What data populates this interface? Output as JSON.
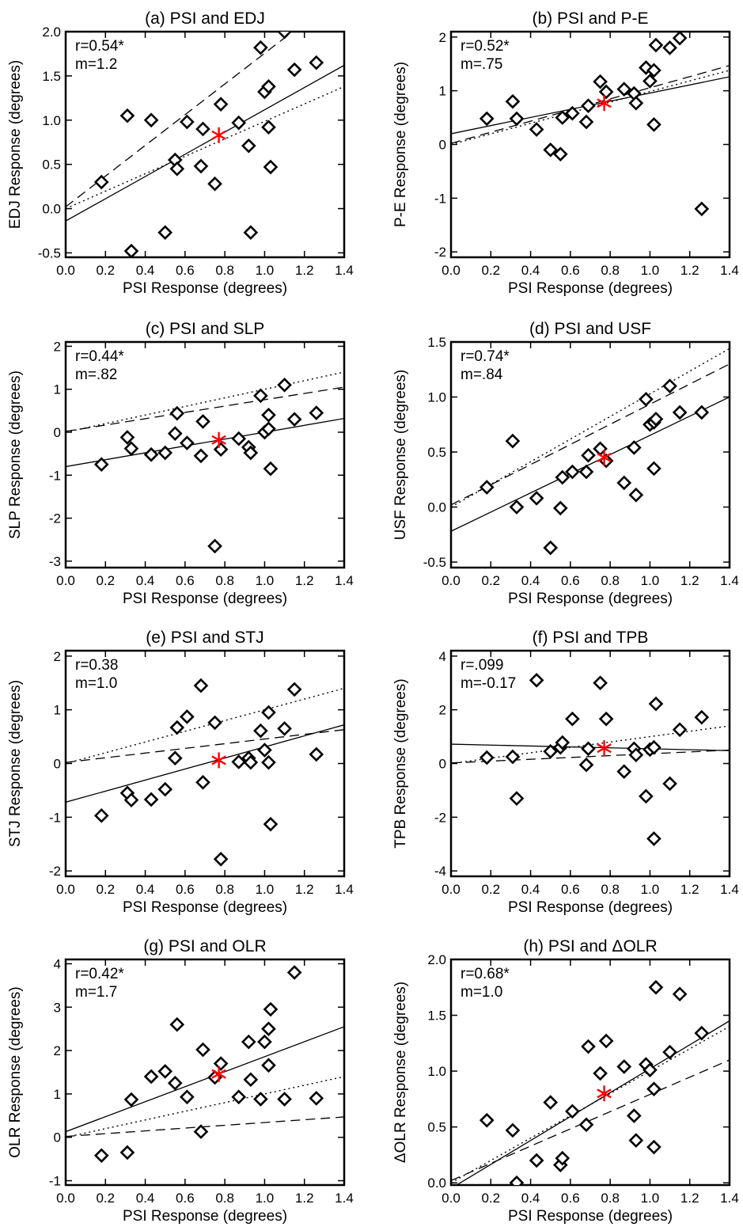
{
  "chart_data": [
    {
      "type": "scatter",
      "title": "(a) PSI and EDJ",
      "xlabel": "PSI Response (degrees)",
      "ylabel": "EDJ Response (degrees)",
      "xlim": [
        0,
        1.4
      ],
      "ylim": [
        -0.55,
        2.0
      ],
      "xticks": [
        "0.0",
        "0.2",
        "0.4",
        "0.6",
        "0.8",
        "1.0",
        "1.2",
        "1.4"
      ],
      "yticks": [
        "-0.5",
        "0.0",
        "0.5",
        "1.0",
        "1.5",
        "2.0"
      ],
      "stats": [
        "r=0.54*",
        "m=1.2"
      ],
      "points": [
        [
          0.18,
          0.3
        ],
        [
          0.31,
          1.05
        ],
        [
          0.33,
          -0.48
        ],
        [
          0.43,
          1.0
        ],
        [
          0.5,
          -0.27
        ],
        [
          0.55,
          0.55
        ],
        [
          0.56,
          0.45
        ],
        [
          0.61,
          0.98
        ],
        [
          0.68,
          0.48
        ],
        [
          0.69,
          0.9
        ],
        [
          0.75,
          0.28
        ],
        [
          0.78,
          1.18
        ],
        [
          0.87,
          0.97
        ],
        [
          0.92,
          0.71
        ],
        [
          0.93,
          -0.27
        ],
        [
          0.98,
          1.82
        ],
        [
          1.0,
          1.32
        ],
        [
          1.02,
          1.38
        ],
        [
          1.02,
          0.92
        ],
        [
          1.03,
          0.47
        ],
        [
          1.1,
          2.0
        ],
        [
          1.15,
          1.57
        ],
        [
          1.26,
          1.65
        ]
      ],
      "mean_point": [
        0.77,
        0.83
      ],
      "lines": {
        "solid": [
          [
            0,
            -0.14
          ],
          [
            1.4,
            1.62
          ]
        ],
        "dashed": [
          [
            0,
            0.02
          ],
          [
            1.4,
            2.45
          ]
        ],
        "dotted": [
          [
            0,
            0.0
          ],
          [
            1.4,
            1.38
          ]
        ]
      }
    },
    {
      "type": "scatter",
      "title": "(b) PSI and P-E",
      "xlabel": "PSI Response (degrees)",
      "ylabel": "P-E Response (degrees)",
      "xlim": [
        0,
        1.4
      ],
      "ylim": [
        -2.1,
        2.1
      ],
      "xticks": [
        "0.0",
        "0.2",
        "0.4",
        "0.6",
        "0.8",
        "1.0",
        "1.2",
        "1.4"
      ],
      "yticks": [
        "-2",
        "-1",
        "0",
        "1",
        "2"
      ],
      "stats": [
        "r=0.52*",
        "m=.75"
      ],
      "points": [
        [
          0.18,
          0.48
        ],
        [
          0.31,
          0.8
        ],
        [
          0.33,
          0.48
        ],
        [
          0.43,
          0.28
        ],
        [
          0.5,
          -0.1
        ],
        [
          0.55,
          -0.18
        ],
        [
          0.56,
          0.5
        ],
        [
          0.61,
          0.58
        ],
        [
          0.68,
          0.42
        ],
        [
          0.69,
          0.72
        ],
        [
          0.75,
          1.17
        ],
        [
          0.78,
          0.98
        ],
        [
          0.87,
          1.03
        ],
        [
          0.92,
          0.95
        ],
        [
          0.93,
          0.77
        ],
        [
          0.98,
          1.43
        ],
        [
          1.0,
          1.18
        ],
        [
          1.02,
          1.38
        ],
        [
          1.02,
          0.37
        ],
        [
          1.03,
          1.85
        ],
        [
          1.1,
          1.8
        ],
        [
          1.15,
          1.98
        ],
        [
          1.26,
          -1.2
        ]
      ],
      "mean_point": [
        0.77,
        0.77
      ],
      "lines": {
        "solid": [
          [
            0,
            0.2
          ],
          [
            1.4,
            1.26
          ]
        ],
        "dashed": [
          [
            0,
            0.02
          ],
          [
            1.4,
            1.47
          ]
        ],
        "dotted": [
          [
            0,
            0.0
          ],
          [
            1.4,
            1.38
          ]
        ]
      }
    },
    {
      "type": "scatter",
      "title": "(c) PSI and SLP",
      "xlabel": "PSI Response (degrees)",
      "ylabel": "SLP Response (degrees)",
      "xlim": [
        0,
        1.4
      ],
      "ylim": [
        -3.15,
        2.1
      ],
      "xticks": [
        "0.0",
        "0.2",
        "0.4",
        "0.6",
        "0.8",
        "1.0",
        "1.2",
        "1.4"
      ],
      "yticks": [
        "-3",
        "-2",
        "-1",
        "0",
        "1",
        "2"
      ],
      "stats": [
        "r=0.44*",
        "m=.82"
      ],
      "points": [
        [
          0.18,
          -0.75
        ],
        [
          0.31,
          -0.12
        ],
        [
          0.33,
          -0.38
        ],
        [
          0.43,
          -0.52
        ],
        [
          0.5,
          -0.48
        ],
        [
          0.55,
          -0.03
        ],
        [
          0.56,
          0.44
        ],
        [
          0.61,
          -0.25
        ],
        [
          0.68,
          -0.55
        ],
        [
          0.69,
          0.25
        ],
        [
          0.75,
          -2.65
        ],
        [
          0.78,
          -0.4
        ],
        [
          0.87,
          -0.15
        ],
        [
          0.92,
          -0.35
        ],
        [
          0.93,
          -0.48
        ],
        [
          0.98,
          0.85
        ],
        [
          1.0,
          0.0
        ],
        [
          1.02,
          0.08
        ],
        [
          1.02,
          0.4
        ],
        [
          1.03,
          -0.85
        ],
        [
          1.1,
          1.1
        ],
        [
          1.15,
          0.3
        ],
        [
          1.26,
          0.45
        ]
      ],
      "mean_point": [
        0.77,
        -0.18
      ],
      "lines": {
        "solid": [
          [
            0,
            -0.8
          ],
          [
            1.4,
            0.32
          ]
        ],
        "dashed": [
          [
            0,
            0.02
          ],
          [
            1.4,
            1.05
          ]
        ],
        "dotted": [
          [
            0,
            0.0
          ],
          [
            1.4,
            1.4
          ]
        ]
      }
    },
    {
      "type": "scatter",
      "title": "(d) PSI and USF",
      "xlabel": "PSI Response (degrees)",
      "ylabel": "USF Response (degrees)",
      "xlim": [
        0,
        1.4
      ],
      "ylim": [
        -0.55,
        1.5
      ],
      "xticks": [
        "0.0",
        "0.2",
        "0.4",
        "0.6",
        "0.8",
        "1.0",
        "1.2",
        "1.4"
      ],
      "yticks": [
        "-0.5",
        "0.0",
        "0.5",
        "1.0",
        "1.5"
      ],
      "stats": [
        "r=0.74*",
        "m=.84"
      ],
      "points": [
        [
          0.18,
          0.18
        ],
        [
          0.31,
          0.6
        ],
        [
          0.33,
          0.0
        ],
        [
          0.43,
          0.08
        ],
        [
          0.5,
          -0.37
        ],
        [
          0.55,
          -0.01
        ],
        [
          0.56,
          0.27
        ],
        [
          0.61,
          0.32
        ],
        [
          0.68,
          0.32
        ],
        [
          0.69,
          0.47
        ],
        [
          0.75,
          0.53
        ],
        [
          0.78,
          0.42
        ],
        [
          0.87,
          0.22
        ],
        [
          0.92,
          0.54
        ],
        [
          0.93,
          0.11
        ],
        [
          0.98,
          0.98
        ],
        [
          1.0,
          0.75
        ],
        [
          1.02,
          0.35
        ],
        [
          1.02,
          0.77
        ],
        [
          1.03,
          0.8
        ],
        [
          1.1,
          1.1
        ],
        [
          1.15,
          0.86
        ],
        [
          1.26,
          0.86
        ]
      ],
      "mean_point": [
        0.77,
        0.45
      ],
      "lines": {
        "solid": [
          [
            0,
            -0.22
          ],
          [
            1.4,
            1.0
          ]
        ],
        "dashed": [
          [
            0,
            0.02
          ],
          [
            1.4,
            1.3
          ]
        ],
        "dotted": [
          [
            0,
            0.0
          ],
          [
            1.4,
            1.44
          ]
        ]
      }
    },
    {
      "type": "scatter",
      "title": "(e) PSI and STJ",
      "xlabel": "PSI Response (degrees)",
      "ylabel": "STJ Response (degrees)",
      "xlim": [
        0,
        1.4
      ],
      "ylim": [
        -2.1,
        2.1
      ],
      "xticks": [
        "0.0",
        "0.2",
        "0.4",
        "0.6",
        "0.8",
        "1.0",
        "1.2",
        "1.4"
      ],
      "yticks": [
        "-2",
        "-1",
        "0",
        "1",
        "2"
      ],
      "stats": [
        "r=0.38",
        "m=1.0"
      ],
      "points": [
        [
          0.18,
          -0.97
        ],
        [
          0.31,
          -0.55
        ],
        [
          0.33,
          -0.68
        ],
        [
          0.43,
          -0.67
        ],
        [
          0.5,
          -0.48
        ],
        [
          0.55,
          0.1
        ],
        [
          0.56,
          0.67
        ],
        [
          0.61,
          0.87
        ],
        [
          0.68,
          1.45
        ],
        [
          0.69,
          -0.35
        ],
        [
          0.75,
          0.76
        ],
        [
          0.78,
          -1.78
        ],
        [
          0.87,
          0.03
        ],
        [
          0.92,
          0.1
        ],
        [
          0.93,
          0.02
        ],
        [
          0.98,
          0.61
        ],
        [
          1.0,
          0.25
        ],
        [
          1.02,
          0.95
        ],
        [
          1.02,
          0.02
        ],
        [
          1.03,
          -1.13
        ],
        [
          1.1,
          0.65
        ],
        [
          1.15,
          1.38
        ],
        [
          1.26,
          0.17
        ]
      ],
      "mean_point": [
        0.77,
        0.06
      ],
      "lines": {
        "solid": [
          [
            0,
            -0.72
          ],
          [
            1.4,
            0.72
          ]
        ],
        "dashed": [
          [
            0,
            0.02
          ],
          [
            1.4,
            0.63
          ]
        ],
        "dotted": [
          [
            0,
            0.0
          ],
          [
            1.4,
            1.4
          ]
        ]
      }
    },
    {
      "type": "scatter",
      "title": "(f) PSI and TPB",
      "xlabel": "PSI Response (degrees)",
      "ylabel": "TPB Response (degrees)",
      "xlim": [
        0,
        1.4
      ],
      "ylim": [
        -4.2,
        4.2
      ],
      "xticks": [
        "0.0",
        "0.2",
        "0.4",
        "0.6",
        "0.8",
        "1.0",
        "1.2",
        "1.4"
      ],
      "yticks": [
        "-4",
        "-2",
        "0",
        "2",
        "4"
      ],
      "stats": [
        "r=.099",
        "m=-0.17"
      ],
      "points": [
        [
          0.18,
          0.22
        ],
        [
          0.31,
          0.25
        ],
        [
          0.33,
          -1.3
        ],
        [
          0.43,
          3.1
        ],
        [
          0.5,
          0.45
        ],
        [
          0.55,
          0.6
        ],
        [
          0.56,
          0.78
        ],
        [
          0.61,
          1.66
        ],
        [
          0.68,
          -0.05
        ],
        [
          0.69,
          0.55
        ],
        [
          0.75,
          3.0
        ],
        [
          0.78,
          1.66
        ],
        [
          0.87,
          -0.3
        ],
        [
          0.92,
          0.55
        ],
        [
          0.93,
          0.32
        ],
        [
          0.98,
          -1.22
        ],
        [
          1.0,
          0.52
        ],
        [
          1.02,
          -2.8
        ],
        [
          1.02,
          0.6
        ],
        [
          1.03,
          2.22
        ],
        [
          1.1,
          -0.75
        ],
        [
          1.15,
          1.26
        ],
        [
          1.26,
          1.72
        ]
      ],
      "mean_point": [
        0.77,
        0.57
      ],
      "lines": {
        "solid": [
          [
            0,
            0.72
          ],
          [
            1.4,
            0.48
          ]
        ],
        "dashed": [
          [
            0,
            0.02
          ],
          [
            1.4,
            0.5
          ]
        ],
        "dotted": [
          [
            0,
            0.0
          ],
          [
            1.4,
            1.4
          ]
        ]
      }
    },
    {
      "type": "scatter",
      "title": "(g) PSI and OLR",
      "xlabel": "PSI Response (degrees)",
      "ylabel": "OLR Response (degrees)",
      "xlim": [
        0,
        1.4
      ],
      "ylim": [
        -1.1,
        4.1
      ],
      "xticks": [
        "0.0",
        "0.2",
        "0.4",
        "0.6",
        "0.8",
        "1.0",
        "1.2",
        "1.4"
      ],
      "yticks": [
        "-1",
        "0",
        "1",
        "2",
        "3",
        "4"
      ],
      "stats": [
        "r=0.42*",
        "m=1.7"
      ],
      "points": [
        [
          0.18,
          -0.42
        ],
        [
          0.31,
          -0.35
        ],
        [
          0.33,
          0.87
        ],
        [
          0.43,
          1.4
        ],
        [
          0.5,
          1.52
        ],
        [
          0.55,
          1.25
        ],
        [
          0.56,
          2.6
        ],
        [
          0.61,
          0.93
        ],
        [
          0.68,
          0.13
        ],
        [
          0.69,
          2.02
        ],
        [
          0.75,
          1.38
        ],
        [
          0.78,
          1.7
        ],
        [
          0.87,
          0.93
        ],
        [
          0.92,
          2.2
        ],
        [
          0.93,
          1.33
        ],
        [
          0.98,
          0.88
        ],
        [
          1.0,
          2.2
        ],
        [
          1.02,
          1.66
        ],
        [
          1.02,
          2.5
        ],
        [
          1.03,
          2.95
        ],
        [
          1.1,
          0.88
        ],
        [
          1.15,
          3.8
        ],
        [
          1.26,
          0.9
        ]
      ],
      "mean_point": [
        0.77,
        1.46
      ],
      "lines": {
        "solid": [
          [
            0,
            0.13
          ],
          [
            1.4,
            2.55
          ]
        ],
        "dashed": [
          [
            0,
            0.02
          ],
          [
            1.4,
            0.47
          ]
        ],
        "dotted": [
          [
            0,
            0.0
          ],
          [
            1.4,
            1.4
          ]
        ]
      }
    },
    {
      "type": "scatter",
      "title": "(h) PSI and ΔOLR",
      "xlabel": "PSI Response (degrees)",
      "ylabel": "ΔOLR Response (degrees)",
      "xlim": [
        0,
        1.4
      ],
      "ylim": [
        -0.02,
        2.0
      ],
      "xticks": [
        "0.0",
        "0.2",
        "0.4",
        "0.6",
        "0.8",
        "1.0",
        "1.2",
        "1.4"
      ],
      "yticks": [
        "0.0",
        "0.5",
        "1.0",
        "1.5",
        "2.0"
      ],
      "stats": [
        "r=0.68*",
        "m=1.0"
      ],
      "points": [
        [
          0.18,
          0.56
        ],
        [
          0.31,
          0.47
        ],
        [
          0.33,
          0.0
        ],
        [
          0.43,
          0.2
        ],
        [
          0.5,
          0.72
        ],
        [
          0.55,
          0.16
        ],
        [
          0.56,
          0.22
        ],
        [
          0.61,
          0.64
        ],
        [
          0.68,
          0.52
        ],
        [
          0.69,
          1.22
        ],
        [
          0.75,
          0.98
        ],
        [
          0.78,
          1.27
        ],
        [
          0.87,
          1.04
        ],
        [
          0.92,
          0.6
        ],
        [
          0.93,
          0.38
        ],
        [
          0.98,
          1.06
        ],
        [
          1.0,
          1.01
        ],
        [
          1.02,
          0.32
        ],
        [
          1.02,
          0.84
        ],
        [
          1.03,
          1.75
        ],
        [
          1.1,
          1.17
        ],
        [
          1.15,
          1.69
        ],
        [
          1.26,
          1.34
        ]
      ],
      "mean_point": [
        0.77,
        0.8
      ],
      "lines": {
        "solid": [
          [
            0,
            -0.05
          ],
          [
            1.4,
            1.45
          ]
        ],
        "dashed": [
          [
            0,
            0.02
          ],
          [
            1.4,
            1.1
          ]
        ],
        "dotted": [
          [
            0,
            0.0
          ],
          [
            1.4,
            1.4
          ]
        ]
      }
    }
  ]
}
